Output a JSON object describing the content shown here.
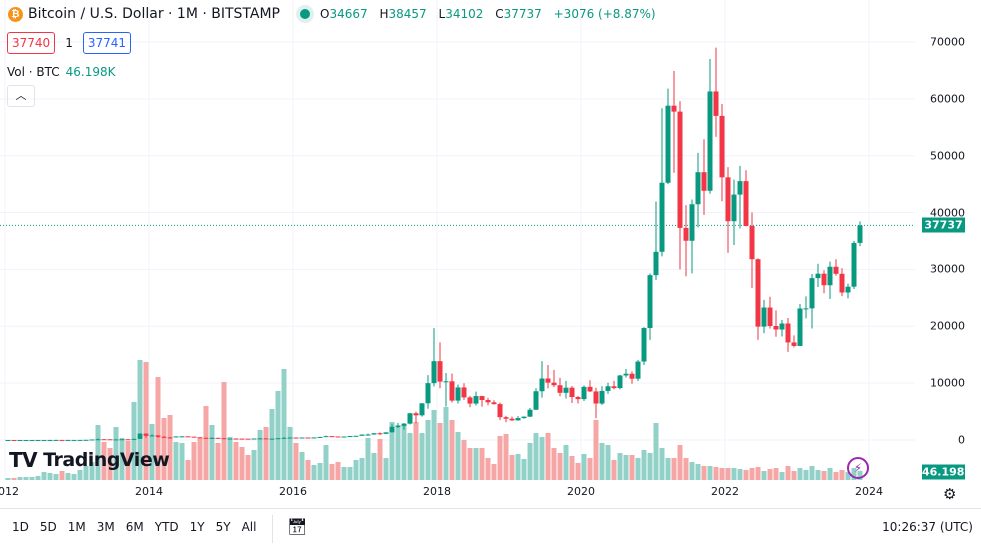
{
  "header": {
    "symbol_icon": "bitcoin-icon",
    "title": "Bitcoin / U.S. Dollar · 1M · BITSTAMP",
    "status_color": "#089981",
    "ohlc": {
      "o_label": "O",
      "o": "34667",
      "h_label": "H",
      "h": "38457",
      "l_label": "L",
      "l": "34102",
      "c_label": "C",
      "c": "37737",
      "change": "+3076 (+8.87%)"
    },
    "bid": "37740",
    "spread": "1",
    "ask": "37741",
    "volume_label": "Vol · BTC",
    "volume_value": "46.198K",
    "collapse_icon": "chevron-up-icon"
  },
  "logo": {
    "mark": "TV",
    "text": "TradingView"
  },
  "price_tag": "37737",
  "volume_tag": "46.198K",
  "time_ranges": [
    "1D",
    "5D",
    "1M",
    "3M",
    "6M",
    "YTD",
    "1Y",
    "5Y",
    "All"
  ],
  "clock": "10:26:37 (UTC)",
  "colors": {
    "up": "#089981",
    "down": "#f23645",
    "vol_up": "#92d1c7",
    "vol_down": "#f5a6a5",
    "grid": "#f0f3fa"
  },
  "chart_data": {
    "type": "candlestick",
    "interval": "1M",
    "y_axis": {
      "ticks": [
        0,
        10000,
        20000,
        30000,
        40000,
        50000,
        60000,
        70000
      ],
      "labels": [
        "0",
        "10000",
        "20000",
        "30000",
        "40000",
        "50000",
        "60000",
        "70000"
      ],
      "position": "right"
    },
    "x_axis": {
      "labels": [
        "2012",
        "2014",
        "2016",
        "2018",
        "2020",
        "2022",
        "2024"
      ]
    },
    "last_price": 37737,
    "volume_unit": "K BTC",
    "columns": [
      "month",
      "open",
      "high",
      "low",
      "close",
      "volume"
    ],
    "rows": [
      [
        "2012-01",
        4.7,
        7.4,
        4.2,
        5.5,
        10
      ],
      [
        "2012-02",
        5.5,
        6.1,
        4.2,
        4.9,
        10
      ],
      [
        "2012-03",
        4.9,
        5.4,
        4.6,
        4.9,
        15
      ],
      [
        "2012-04",
        4.9,
        5.3,
        4.7,
        5.0,
        15
      ],
      [
        "2012-05",
        5.0,
        5.2,
        4.9,
        5.1,
        15
      ],
      [
        "2012-06",
        5.1,
        6.8,
        5.1,
        6.7,
        20
      ],
      [
        "2012-07",
        6.7,
        9.6,
        6.4,
        9.1,
        40
      ],
      [
        "2012-08",
        9.1,
        15,
        7.1,
        10.2,
        35
      ],
      [
        "2012-09",
        10.2,
        12.8,
        9.9,
        12.4,
        30
      ],
      [
        "2012-10",
        12.4,
        12.6,
        9.5,
        11.2,
        45
      ],
      [
        "2012-11",
        11.2,
        12.6,
        10.3,
        12.6,
        35
      ],
      [
        "2012-12",
        12.6,
        13.8,
        12.2,
        13.5,
        30
      ],
      [
        "2013-01",
        13.5,
        20.7,
        13.2,
        20.4,
        50
      ],
      [
        "2013-02",
        20.4,
        33.5,
        19.6,
        33.4,
        70
      ],
      [
        "2013-03",
        33.4,
        95,
        33,
        93,
        90
      ],
      [
        "2013-04",
        93,
        266,
        50,
        139,
        275
      ],
      [
        "2013-05",
        139,
        139,
        82,
        129,
        190
      ],
      [
        "2013-06",
        129,
        129,
        66,
        97,
        160
      ],
      [
        "2013-07",
        97,
        110,
        65,
        106,
        265
      ],
      [
        "2013-08",
        106,
        135,
        101,
        135,
        210
      ],
      [
        "2013-09",
        135,
        147,
        120,
        133,
        195
      ],
      [
        "2013-10",
        133,
        215,
        104,
        198,
        390
      ],
      [
        "2013-11",
        198,
        1163,
        197,
        1130,
        600
      ],
      [
        "2013-12",
        1130,
        1150,
        400,
        732,
        590
      ],
      [
        "2014-01",
        732,
        1000,
        730,
        800,
        280
      ],
      [
        "2014-02",
        800,
        880,
        400,
        550,
        515
      ],
      [
        "2014-03",
        550,
        700,
        440,
        450,
        310
      ],
      [
        "2014-04",
        450,
        540,
        340,
        447,
        325
      ],
      [
        "2014-05",
        447,
        635,
        430,
        628,
        190
      ],
      [
        "2014-06",
        628,
        680,
        550,
        640,
        185
      ],
      [
        "2014-07",
        640,
        660,
        565,
        585,
        100
      ],
      [
        "2014-08",
        585,
        600,
        440,
        480,
        190
      ],
      [
        "2014-09",
        480,
        490,
        365,
        387,
        210
      ],
      [
        "2014-10",
        387,
        415,
        275,
        338,
        370
      ],
      [
        "2014-11",
        338,
        460,
        320,
        378,
        275
      ],
      [
        "2014-12",
        378,
        385,
        310,
        320,
        185
      ],
      [
        "2015-01",
        320,
        320,
        150,
        217,
        490
      ],
      [
        "2015-02",
        217,
        265,
        210,
        254,
        215
      ],
      [
        "2015-03",
        254,
        300,
        235,
        244,
        190
      ],
      [
        "2015-04",
        244,
        260,
        214,
        236,
        165
      ],
      [
        "2015-05",
        236,
        248,
        228,
        230,
        125
      ],
      [
        "2015-06",
        230,
        268,
        220,
        263,
        150
      ],
      [
        "2015-07",
        263,
        318,
        253,
        284,
        250
      ],
      [
        "2015-08",
        284,
        284,
        200,
        230,
        265
      ],
      [
        "2015-09",
        230,
        245,
        225,
        236,
        355
      ],
      [
        "2015-10",
        236,
        334,
        235,
        314,
        445
      ],
      [
        "2015-11",
        314,
        500,
        300,
        377,
        555
      ],
      [
        "2015-12",
        377,
        470,
        350,
        430,
        265
      ],
      [
        "2016-01",
        430,
        465,
        352,
        368,
        185
      ],
      [
        "2016-02",
        368,
        445,
        365,
        437,
        140
      ],
      [
        "2016-03",
        437,
        440,
        400,
        416,
        100
      ],
      [
        "2016-04",
        416,
        470,
        412,
        448,
        75
      ],
      [
        "2016-05",
        448,
        550,
        440,
        531,
        85
      ],
      [
        "2016-06",
        531,
        780,
        530,
        673,
        175
      ],
      [
        "2016-07",
        673,
        700,
        600,
        624,
        80
      ],
      [
        "2016-08",
        624,
        625,
        530,
        575,
        90
      ],
      [
        "2016-09",
        575,
        610,
        570,
        609,
        65
      ],
      [
        "2016-10",
        609,
        720,
        604,
        698,
        65
      ],
      [
        "2016-11",
        698,
        757,
        690,
        742,
        100
      ],
      [
        "2016-12",
        742,
        975,
        740,
        963,
        110
      ],
      [
        "2017-01",
        963,
        1150,
        750,
        965,
        210
      ],
      [
        "2017-02",
        965,
        1200,
        915,
        1190,
        135
      ],
      [
        "2017-03",
        1190,
        1350,
        890,
        1080,
        205
      ],
      [
        "2017-04",
        1080,
        1350,
        1070,
        1348,
        110
      ],
      [
        "2017-05",
        1348,
        2760,
        1340,
        2300,
        290
      ],
      [
        "2017-06",
        2300,
        3000,
        2100,
        2480,
        275
      ],
      [
        "2017-07",
        2480,
        2980,
        1830,
        2875,
        270
      ],
      [
        "2017-08",
        2875,
        4770,
        2720,
        4703,
        235
      ],
      [
        "2017-09",
        4703,
        5000,
        2970,
        4339,
        290
      ],
      [
        "2017-10",
        4339,
        6470,
        4110,
        6458,
        235
      ],
      [
        "2017-11",
        6458,
        11400,
        5500,
        10000,
        300
      ],
      [
        "2017-12",
        10000,
        19666,
        9400,
        13860,
        350
      ],
      [
        "2018-01",
        13860,
        17176,
        9100,
        10265,
        285
      ],
      [
        "2018-02",
        10265,
        11790,
        5900,
        10326,
        365
      ],
      [
        "2018-03",
        10326,
        11700,
        6600,
        6926,
        300
      ],
      [
        "2018-04",
        6926,
        9760,
        6430,
        9245,
        240
      ],
      [
        "2018-05",
        9245,
        9990,
        7050,
        7494,
        200
      ],
      [
        "2018-06",
        7494,
        7770,
        5760,
        6404,
        160
      ],
      [
        "2018-07",
        6404,
        8500,
        6070,
        7729,
        160
      ],
      [
        "2018-08",
        7729,
        7760,
        5880,
        7033,
        160
      ],
      [
        "2018-09",
        7033,
        7410,
        6110,
        6626,
        110
      ],
      [
        "2018-10",
        6626,
        7000,
        6200,
        6318,
        80
      ],
      [
        "2018-11",
        6318,
        6600,
        3500,
        4017,
        220
      ],
      [
        "2018-12",
        4017,
        4240,
        3122,
        3742,
        230
      ],
      [
        "2019-01",
        3742,
        4100,
        3350,
        3457,
        125
      ],
      [
        "2019-02",
        3457,
        4200,
        3390,
        3854,
        130
      ],
      [
        "2019-03",
        3854,
        4150,
        3730,
        4105,
        105
      ],
      [
        "2019-04",
        4105,
        5630,
        4030,
        5320,
        185
      ],
      [
        "2019-05",
        5320,
        9100,
        5300,
        8574,
        235
      ],
      [
        "2019-06",
        8574,
        13880,
        7450,
        10817,
        215
      ],
      [
        "2019-07",
        10817,
        13200,
        9080,
        10085,
        235
      ],
      [
        "2019-08",
        10085,
        12330,
        9330,
        9630,
        160
      ],
      [
        "2019-09",
        9630,
        10930,
        7700,
        8299,
        135
      ],
      [
        "2019-10",
        8299,
        10400,
        7300,
        9199,
        175
      ],
      [
        "2019-11",
        9199,
        9500,
        6500,
        7557,
        120
      ],
      [
        "2019-12",
        7557,
        7750,
        6430,
        7193,
        85
      ],
      [
        "2020-01",
        7193,
        9580,
        6850,
        9350,
        130
      ],
      [
        "2020-02",
        9350,
        10500,
        8450,
        8543,
        110
      ],
      [
        "2020-03",
        8543,
        9200,
        3850,
        6412,
        300
      ],
      [
        "2020-04",
        6412,
        9470,
        6150,
        8630,
        185
      ],
      [
        "2020-05",
        8630,
        10070,
        8120,
        9450,
        175
      ],
      [
        "2020-06",
        9450,
        10400,
        8900,
        9137,
        100
      ],
      [
        "2020-07",
        9137,
        11450,
        8900,
        11351,
        135
      ],
      [
        "2020-08",
        11351,
        12480,
        10960,
        11655,
        125
      ],
      [
        "2020-09",
        11655,
        12070,
        9900,
        10779,
        125
      ],
      [
        "2020-10",
        10779,
        14100,
        10370,
        13800,
        110
      ],
      [
        "2020-11",
        13800,
        19860,
        13200,
        19700,
        150
      ],
      [
        "2020-12",
        19700,
        29300,
        17600,
        28990,
        135
      ],
      [
        "2021-01",
        28990,
        41950,
        28130,
        33100,
        285
      ],
      [
        "2021-02",
        33100,
        58350,
        32300,
        45240,
        160
      ],
      [
        "2021-03",
        45240,
        61800,
        45000,
        58800,
        110
      ],
      [
        "2021-04",
        58800,
        64900,
        47000,
        57750,
        110
      ],
      [
        "2021-05",
        57750,
        59600,
        30000,
        37300,
        175
      ],
      [
        "2021-06",
        37300,
        41300,
        28800,
        35040,
        110
      ],
      [
        "2021-07",
        35040,
        42300,
        29300,
        41460,
        90
      ],
      [
        "2021-08",
        41460,
        50500,
        37400,
        47100,
        80
      ],
      [
        "2021-09",
        47100,
        52900,
        39600,
        43830,
        70
      ],
      [
        "2021-10",
        43830,
        67000,
        43300,
        61300,
        70
      ],
      [
        "2021-11",
        61300,
        69000,
        53300,
        57000,
        65
      ],
      [
        "2021-12",
        57000,
        59100,
        42000,
        46200,
        60
      ],
      [
        "2022-01",
        46200,
        48000,
        32900,
        38480,
        60
      ],
      [
        "2022-02",
        38480,
        45800,
        34300,
        43160,
        60
      ],
      [
        "2022-03",
        43160,
        48200,
        37200,
        45530,
        55
      ],
      [
        "2022-04",
        45530,
        47450,
        37600,
        37640,
        50
      ],
      [
        "2022-05",
        37640,
        40000,
        26700,
        31800,
        60
      ],
      [
        "2022-06",
        31800,
        31950,
        17600,
        19940,
        65
      ],
      [
        "2022-07",
        19940,
        24650,
        18800,
        23300,
        45
      ],
      [
        "2022-08",
        23300,
        25200,
        19600,
        20050,
        55
      ],
      [
        "2022-09",
        20050,
        22800,
        18150,
        19430,
        60
      ],
      [
        "2022-10",
        19430,
        21100,
        18200,
        20490,
        40
      ],
      [
        "2022-11",
        20490,
        21450,
        15500,
        17160,
        70
      ],
      [
        "2022-12",
        17160,
        18400,
        16300,
        16540,
        45
      ],
      [
        "2023-01",
        16540,
        23950,
        16500,
        23130,
        60
      ],
      [
        "2023-02",
        23130,
        25250,
        21400,
        23150,
        50
      ],
      [
        "2023-03",
        23150,
        29200,
        19600,
        28470,
        70
      ],
      [
        "2023-04",
        28470,
        31000,
        26900,
        29250,
        50
      ],
      [
        "2023-05",
        29250,
        29850,
        25800,
        27220,
        45
      ],
      [
        "2023-06",
        27220,
        31400,
        24800,
        30470,
        60
      ],
      [
        "2023-07",
        30470,
        31800,
        28900,
        29230,
        40
      ],
      [
        "2023-08",
        29230,
        30200,
        25300,
        25940,
        50
      ],
      [
        "2023-09",
        25940,
        27500,
        24900,
        26960,
        40
      ],
      [
        "2023-10",
        26960,
        35000,
        26550,
        34660,
        60
      ],
      [
        "2023-11",
        34667,
        38457,
        34102,
        37737,
        46.198
      ]
    ]
  }
}
